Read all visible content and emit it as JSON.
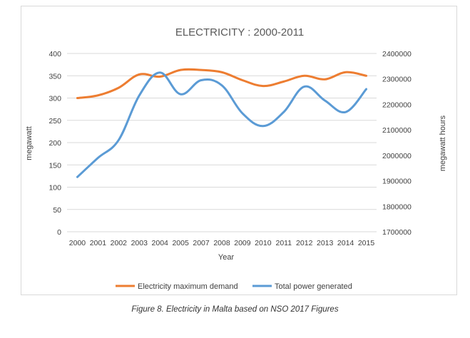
{
  "caption": "Figure 8. Electricity in Malta based on NSO 2017 Figures",
  "chart_data": {
    "type": "line",
    "title": "ELECTRICITY  : 2000-2011",
    "xlabel": "Year",
    "ylabel_left": "megawatt",
    "ylabel_right": "megawatt  hours",
    "categories": [
      "2000",
      "2001",
      "2002",
      "2003",
      "2004",
      "2005",
      "2007",
      "2008",
      "2009",
      "2010",
      "2011",
      "2012",
      "2013",
      "2014",
      "2015"
    ],
    "y_left": {
      "min": 0,
      "max": 400,
      "step": 50,
      "ticks": [
        "0",
        "50",
        "100",
        "150",
        "200",
        "250",
        "300",
        "350",
        "400"
      ]
    },
    "y_right": {
      "min": 1700000,
      "max": 2400000,
      "step": 100000,
      "ticks": [
        "1700000",
        "1800000",
        "1900000",
        "2000000",
        "2100000",
        "2200000",
        "2300000",
        "2400000"
      ]
    },
    "grid": true,
    "legend_position": "bottom",
    "series": [
      {
        "name": "Electricity maximum demand",
        "axis": "left",
        "color": "#ED7D31",
        "values": [
          300,
          306,
          323,
          353,
          348,
          363,
          363,
          358,
          340,
          327,
          337,
          350,
          342,
          358,
          350
        ]
      },
      {
        "name": "Total power generated",
        "axis": "right",
        "color": "#5B9BD5",
        "values": [
          1915000,
          1990000,
          2060000,
          2235000,
          2325000,
          2240000,
          2295000,
          2275000,
          2165000,
          2115000,
          2170000,
          2270000,
          2215000,
          2170000,
          2260000
        ]
      }
    ]
  }
}
